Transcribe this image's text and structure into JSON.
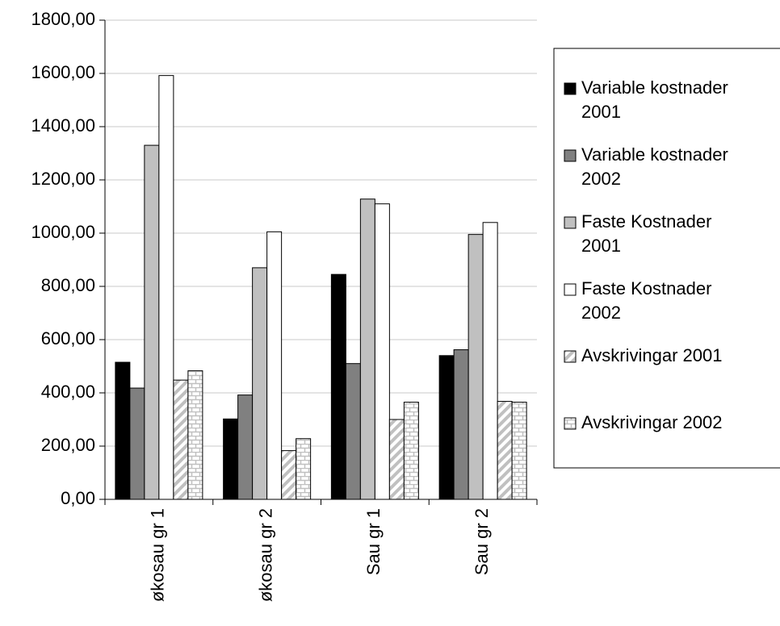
{
  "chart_data": {
    "type": "bar",
    "categories": [
      "økosau gr 1",
      "økosau gr 2",
      "Sau gr 1",
      "Sau gr 2"
    ],
    "series": [
      {
        "name": "Variable kostnader 2001",
        "color": "#000000",
        "values": [
          515,
          302,
          845,
          540
        ]
      },
      {
        "name": "Variable kostnader 2002",
        "color": "#808080",
        "values": [
          418,
          392,
          510,
          562
        ]
      },
      {
        "name": "Faste Kostnader 2001",
        "color": "#c0c0c0",
        "values": [
          1330,
          870,
          1128,
          995
        ]
      },
      {
        "name": "Faste Kostnader 2002",
        "color": "#ffffff",
        "values": [
          1592,
          1005,
          1110,
          1040
        ]
      },
      {
        "name": "Avskrivingar 2001",
        "color": "#c0c0c0",
        "pattern": "diagonal",
        "values": [
          448,
          183,
          300,
          368
        ]
      },
      {
        "name": "Avskrivingar 2002",
        "color": "#c0c0c0",
        "pattern": "brick",
        "values": [
          483,
          228,
          365,
          365
        ]
      }
    ],
    "ylim": [
      0,
      1800
    ],
    "yticks": [
      {
        "value": 0,
        "label": "0,00"
      },
      {
        "value": 200,
        "label": "200,00"
      },
      {
        "value": 400,
        "label": "400,00"
      },
      {
        "value": 600,
        "label": "600,00"
      },
      {
        "value": 800,
        "label": "800,00"
      },
      {
        "value": 1000,
        "label": "1000,00"
      },
      {
        "value": 1200,
        "label": "1200,00"
      },
      {
        "value": 1400,
        "label": "1400,00"
      },
      {
        "value": 1600,
        "label": "1600,00"
      },
      {
        "value": 1800,
        "label": "1800,00"
      }
    ],
    "grid": true,
    "legend": "right"
  }
}
